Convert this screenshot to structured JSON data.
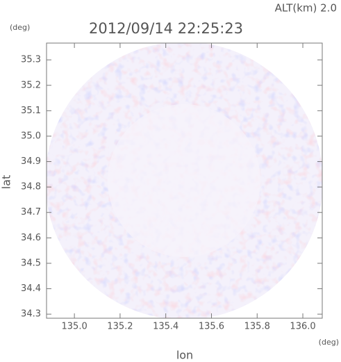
{
  "chart_data": {
    "type": "radar-field",
    "title": "2012/09/14 22:25:23",
    "annotation": "ALT(km) 2.0",
    "x_label": "lon",
    "y_label": "lat",
    "x_unit": "(deg)",
    "y_unit": "(deg)",
    "xlim": [
      134.878,
      136.085
    ],
    "ylim": [
      34.284,
      35.366
    ],
    "xticks": [
      {
        "value": 135.0,
        "label": "135.0"
      },
      135.2,
      135.4,
      135.6,
      135.8,
      {
        "value": 136.0,
        "label": "136.0"
      }
    ],
    "yticks": [
      34.3,
      34.4,
      34.5,
      34.6,
      34.7,
      34.8,
      34.9,
      {
        "value": 35.0,
        "label": "35.0"
      },
      35.1,
      35.2,
      35.3
    ]
  }
}
